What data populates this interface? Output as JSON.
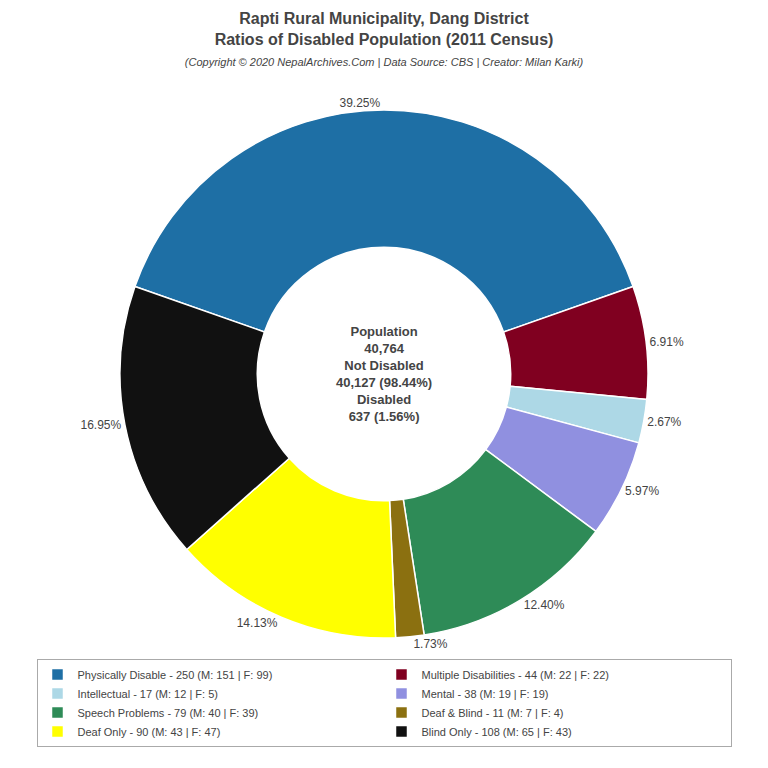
{
  "chart_data": {
    "type": "pie",
    "title": [
      "Rapti Rural Municipality, Dang District",
      "Ratios of Disabled Population (2011 Census)"
    ],
    "subtitle": "(Copyright © 2020 NepalArchives.Com | Data Source: CBS | Creator: Milan Karki)",
    "categories": [
      "Physically Disable - 250 (M: 151 | F: 99)",
      "Multiple Disabilities - 44 (M: 22 | F: 22)",
      "Intellectual - 17 (M: 12 | F: 5)",
      "Mental - 38 (M: 19 | F: 19)",
      "Speech Problems - 79 (M: 40 | F: 39)",
      "Deaf & Blind - 11 (M: 7 | F: 4)",
      "Deaf Only - 90 (M: 43 | F: 47)",
      "Blind Only - 108 (M: 65 | F: 43)"
    ],
    "values": [
      39.25,
      6.91,
      2.67,
      5.97,
      12.4,
      1.73,
      14.13,
      16.95
    ],
    "value_labels": [
      "39.25%",
      "6.91%",
      "2.67%",
      "5.97%",
      "12.40%",
      "1.73%",
      "14.13%",
      "16.95%"
    ],
    "colors": [
      "#1e6fa5",
      "#800020",
      "#add8e6",
      "#9090e0",
      "#2e8b57",
      "#8b7010",
      "#ffff00",
      "#111111"
    ],
    "annotations": [
      "Population",
      "40,764",
      "Not Disabled",
      "40,127 (98.44%)",
      "Disabled",
      "637 (1.56%)"
    ],
    "legend": "bottom"
  }
}
